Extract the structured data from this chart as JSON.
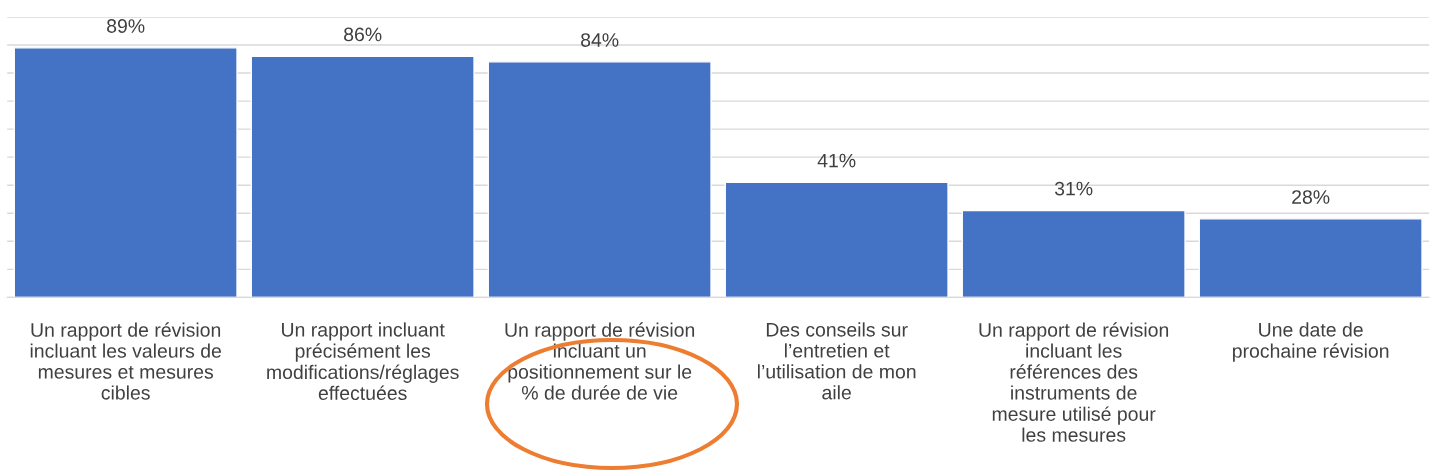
{
  "chart_data": {
    "type": "bar",
    "categories": [
      "Un rapport de révision\nincluant les valeurs de\nmesures et mesures\ncibles",
      "Un rapport incluant\nprécisément les\nmodifications/réglages\neffectuées",
      "Un rapport de révision\nincluant un\npositionnement sur le\n% de durée de vie",
      "Des conseils sur\nl’entretien et\nl’utilisation de mon\naile",
      "Un rapport de révision\nincluant les\nréférences des\ninstruments de\nmesure utilisé pour\nles mesures",
      "Une date de\nprochaine révision"
    ],
    "values": [
      89,
      86,
      84,
      41,
      31,
      28
    ],
    "value_labels": [
      "89%",
      "86%",
      "84%",
      "41%",
      "31%",
      "28%"
    ],
    "color": "#4472c4",
    "ylim": [
      0,
      100
    ],
    "yticks": [
      {
        "value": 0,
        "label": null
      },
      {
        "value": 10,
        "label": null
      },
      {
        "value": 20,
        "label": null
      },
      {
        "value": 30,
        "label": null
      },
      {
        "value": 40,
        "label": null
      },
      {
        "value": 50,
        "label": null
      },
      {
        "value": 60,
        "label": null
      },
      {
        "value": 70,
        "label": null
      },
      {
        "value": 80,
        "label": null
      },
      {
        "value": 90,
        "label": null
      },
      {
        "value": 100,
        "label": null
      }
    ],
    "grid": "y",
    "tick_labels": "x"
  }
}
